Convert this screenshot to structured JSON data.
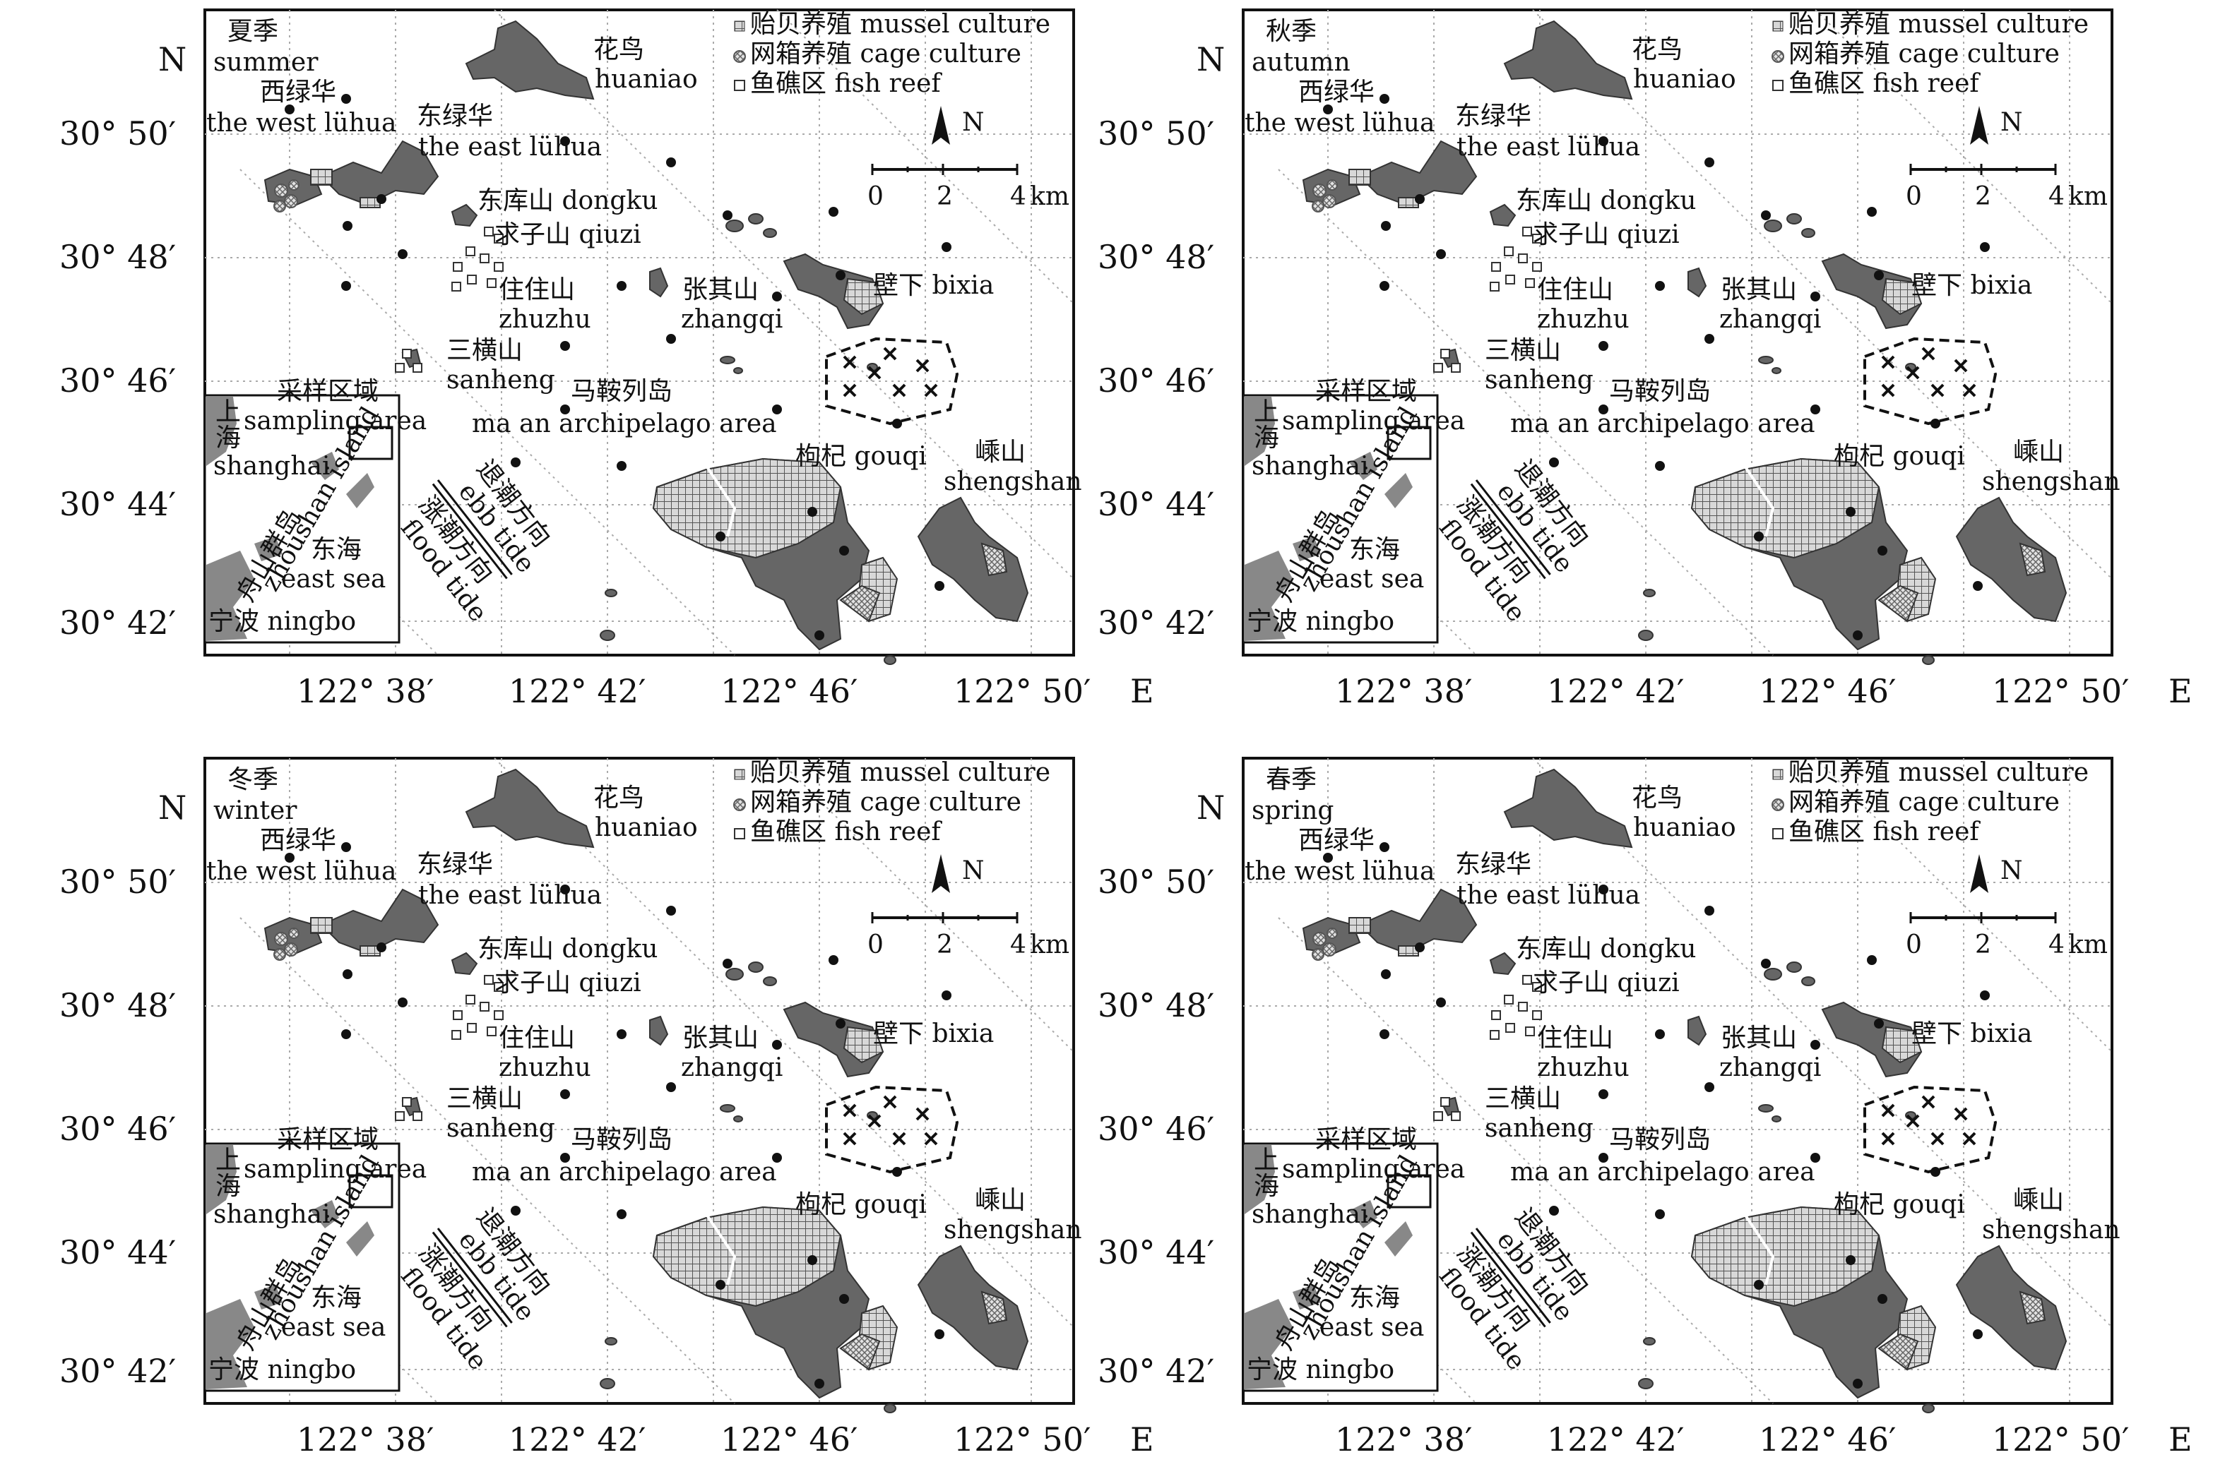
{
  "axes": {
    "lat_labels": [
      "30° 50′",
      "30° 48′",
      "30° 46′",
      "30° 44′",
      "30° 42′"
    ],
    "lon_labels": [
      "122° 38′",
      "122° 42′",
      "122° 46′",
      "122° 50′"
    ],
    "north": "N",
    "east": "E"
  },
  "legend": {
    "mussel": "贻贝养殖 mussel culture",
    "cage": "网箱养殖 cage culture",
    "reef": "鱼礁区 fish reef"
  },
  "scalebar": {
    "ticks": [
      "0",
      "2",
      "4"
    ],
    "unit": "km",
    "north": "N"
  },
  "places": {
    "huaniao_cn": "花鸟",
    "huaniao_en": "huaniao",
    "westluhua_cn": "西绿华",
    "westluhua_en": "the west lühua",
    "eastluhua_cn": "东绿华",
    "eastluhua_en": "the east lühua",
    "dongku": "东库山 dongku",
    "qiuzi": "求子山 qiuzi",
    "zhuzhu_cn": "住住山",
    "zhuzhu_en": "zhuzhu",
    "zhangqi_cn": "张其山",
    "zhangqi_en": "zhangqi",
    "bixia": "壁下 bixia",
    "sanheng_cn": "三横山",
    "sanheng_en": "sanheng",
    "maan_cn": "马鞍列岛",
    "maan_en": "ma an archipelago area",
    "sampling_cn": "采样区域",
    "sampling_en": "sampling area",
    "gouqi": "枸杞 gouqi",
    "shengshan_cn": "嵊山",
    "shengshan_en": "shengshan"
  },
  "inset": {
    "shanghai_cn1": "上",
    "shanghai_cn2": "海",
    "shanghai_en": "shanghai",
    "zhoushan_cn": "舟山群岛",
    "zhoushan_en": "zhoushan island",
    "eastsea_cn": "东海",
    "eastsea_en": "east sea",
    "ningbo": "宁波 ningbo"
  },
  "tide": {
    "ebb_cn": "退潮方向",
    "ebb_en": "ebb tide",
    "flood_cn": "涨潮方向",
    "flood_en": "flood tide"
  },
  "panels": [
    {
      "season_cn": "夏季",
      "season_en": "summer",
      "scale_mid": "2"
    },
    {
      "season_cn": "秋季",
      "season_en": "autumn",
      "scale_mid": "2"
    },
    {
      "season_cn": "冬季",
      "season_en": "winter",
      "scale_mid": "2"
    },
    {
      "season_cn": "春季",
      "season_en": "spring",
      "scale_mid": "2"
    }
  ]
}
